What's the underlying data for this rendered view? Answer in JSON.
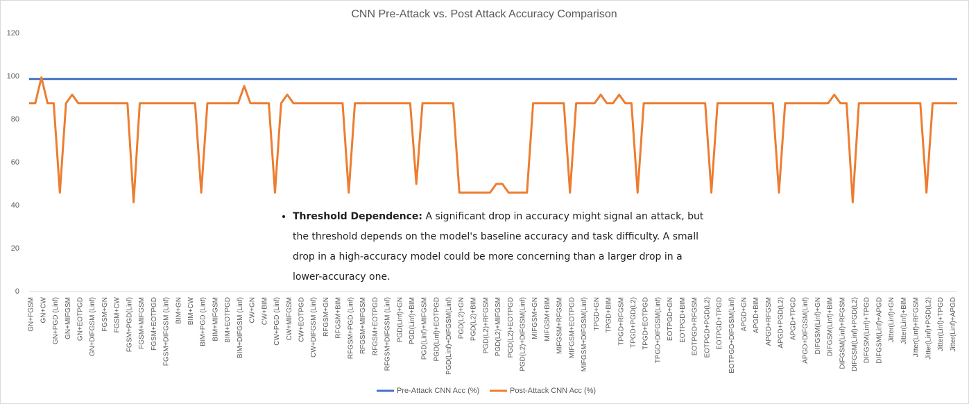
{
  "chart_data": {
    "type": "line",
    "title": "CNN Pre-Attack vs. Post Attack Accuracy Comparison",
    "categories": [
      "GN+FGSM",
      null,
      "GN+CW",
      null,
      "GN+PGD (Linf)",
      null,
      "GN+MIFGSM",
      null,
      "GN+EOTPGD",
      null,
      "GN+DIFGSM (Linf)",
      null,
      "FGSM+GN",
      null,
      "FGSM+CW",
      null,
      "FGSM+PGD(Linf)",
      null,
      "FGSM+MIFGSM",
      null,
      "FGSM+EOTPGD",
      null,
      "FGSM+DIFGSM (Linf)",
      null,
      "BIM+GN",
      null,
      "BIM+CW",
      null,
      "BIM+PGD (Linf)",
      null,
      "BIM+MIFGSM",
      null,
      "BIM+EOTPGD",
      null,
      "BIM+DIFGSM (Linf)",
      null,
      "CW+GN",
      null,
      "CW+BIM",
      null,
      "CW+PGD (Linf)",
      null,
      "CW+MIFGSM",
      null,
      "CW+EOTPGD",
      null,
      "CW+DIFGSM (Linf)",
      null,
      "RFGSM+GN",
      null,
      "RFGSM+BIM",
      null,
      "RFGSM+PGD (Linf)",
      null,
      "RFGSM+MIFGSM",
      null,
      "RFGSM+EOTPGD",
      null,
      "RFGSM+DIFGSM (Linf)",
      null,
      "PGD(Linf)+GN",
      null,
      "PGD(Linf)+BIM",
      null,
      "PGD(Linf)+MIFGSM",
      null,
      "PGD(Linf)+EOTPGD",
      null,
      "PGD(Linf)+DIFGSM(Linf)",
      null,
      "PGD(L2)+GN",
      null,
      "PGD(L2)+BIM",
      null,
      "PGD(L2)+RFGSM",
      null,
      "PGD(L2)+MIFGSM",
      null,
      "PGD(L2)+EOTPGD",
      null,
      "PGD(L2)+DIFGSM(Linf)",
      null,
      "MIFGSM+GN",
      null,
      "MIFGSM+BIM",
      null,
      "MIFGSM+RFGSM",
      null,
      "MIFGSM+EOTPGD",
      null,
      "MIFGSM+DIFGSM(Linf)",
      null,
      "TPGD+GN",
      null,
      "TPGD+BIM",
      null,
      "TPGD+RFGSM",
      null,
      "TPGD+PGD(L2)",
      null,
      "TPGD+EOTPGD",
      null,
      "TPGD+DIFGSM(Linf)",
      null,
      "EOTPGD+GN",
      null,
      "EOTPGD+BIM",
      null,
      "EOTPGD+RFGSM",
      null,
      "EOTPGD+PGD(L2)",
      null,
      "EOTPGD+TPGD",
      null,
      "EOTPGD+DIFGSM(Linf)",
      null,
      "APGD+GN",
      null,
      "APGD+BIM",
      null,
      "APGD+RFGSM",
      null,
      "APGD+PGD(L2)",
      null,
      "APGD+TPGD",
      null,
      "APGD+DIFGSM(Linf)",
      null,
      "DIFGSM(Linf)+GN",
      null,
      "DIFGSM(Linf)+BIM",
      null,
      "DIFGSM(Linf)+RFGSM",
      null,
      "DIFGSM(Linf)+PGD(L2)",
      null,
      "DIFGSM(Linf)+TPGD",
      null,
      "DIFGSM(Linf)+APGD",
      null,
      "Jitter(Linf)+GN",
      null,
      "Jitter(Linf)+BIM",
      null,
      "Jitter(Linf)+RFGSM",
      null,
      "Jitter(Linf)+PGD(L2)",
      null,
      "Jitter(Linf)+TPGD",
      null,
      "Jitter(Linf)+APGD",
      null
    ],
    "series": [
      {
        "name": "Pre-Attack CNN Acc (%)",
        "color": "#4472c4",
        "values": [
          98.8,
          98.8,
          98.8,
          98.8,
          98.8,
          98.8,
          98.8,
          98.8,
          98.8,
          98.8,
          98.8,
          98.8,
          98.8,
          98.8,
          98.8,
          98.8,
          98.8,
          98.8,
          98.8,
          98.8,
          98.8,
          98.8,
          98.8,
          98.8,
          98.8,
          98.8,
          98.8,
          98.8,
          98.8,
          98.8,
          98.8,
          98.8,
          98.8,
          98.8,
          98.8,
          98.8,
          98.8,
          98.8,
          98.8,
          98.8,
          98.8,
          98.8,
          98.8,
          98.8,
          98.8,
          98.8,
          98.8,
          98.8,
          98.8,
          98.8,
          98.8,
          98.8,
          98.8,
          98.8,
          98.8,
          98.8,
          98.8,
          98.8,
          98.8,
          98.8,
          98.8,
          98.8,
          98.8,
          98.8,
          98.8,
          98.8,
          98.8,
          98.8,
          98.8,
          98.8,
          98.8,
          98.8,
          98.8,
          98.8,
          98.8,
          98.8,
          98.8,
          98.8,
          98.8,
          98.8,
          98.8,
          98.8,
          98.8,
          98.8,
          98.8,
          98.8,
          98.8,
          98.8,
          98.8,
          98.8,
          98.8,
          98.8,
          98.8,
          98.8,
          98.8,
          98.8,
          98.8,
          98.8,
          98.8,
          98.8,
          98.8,
          98.8,
          98.8,
          98.8,
          98.8,
          98.8,
          98.8,
          98.8,
          98.8,
          98.8,
          98.8,
          98.8,
          98.8,
          98.8,
          98.8,
          98.8,
          98.8,
          98.8,
          98.8,
          98.8,
          98.8,
          98.8,
          98.8,
          98.8,
          98.8,
          98.8,
          98.8,
          98.8,
          98.8,
          98.8,
          98.8,
          98.8,
          98.8,
          98.8,
          98.8,
          98.8,
          98.8,
          98.8,
          98.8,
          98.8,
          98.8,
          98.8,
          98.8,
          98.8,
          98.8,
          98.8,
          98.8,
          98.8,
          98.8,
          98.8,
          98.8,
          98.8
        ]
      },
      {
        "name": "Post-Attack CNN Acc (%)",
        "color": "#ed7d31",
        "values": [
          87.5,
          87.5,
          99.5,
          87.5,
          87.5,
          46,
          87.5,
          91.5,
          87.5,
          87.5,
          87.5,
          87.5,
          87.5,
          87.5,
          87.5,
          87.5,
          87.5,
          41.5,
          87.5,
          87.5,
          87.5,
          87.5,
          87.5,
          87.5,
          87.5,
          87.5,
          87.5,
          87.5,
          46,
          87.5,
          87.5,
          87.5,
          87.5,
          87.5,
          87.5,
          95.5,
          87.5,
          87.5,
          87.5,
          87.5,
          46,
          87.5,
          91.5,
          87.5,
          87.5,
          87.5,
          87.5,
          87.5,
          87.5,
          87.5,
          87.5,
          87.5,
          46,
          87.5,
          87.5,
          87.5,
          87.5,
          87.5,
          87.5,
          87.5,
          87.5,
          87.5,
          87.5,
          50,
          87.5,
          87.5,
          87.5,
          87.5,
          87.5,
          87.5,
          46,
          46,
          46,
          46,
          46,
          46,
          50,
          50,
          46,
          46,
          46,
          46,
          87.5,
          87.5,
          87.5,
          87.5,
          87.5,
          87.5,
          46,
          87.5,
          87.5,
          87.5,
          87.5,
          91.5,
          87.5,
          87.5,
          91.5,
          87.5,
          87.5,
          46,
          87.5,
          87.5,
          87.5,
          87.5,
          87.5,
          87.5,
          87.5,
          87.5,
          87.5,
          87.5,
          87.5,
          46,
          87.5,
          87.5,
          87.5,
          87.5,
          87.5,
          87.5,
          87.5,
          87.5,
          87.5,
          87.5,
          46,
          87.5,
          87.5,
          87.5,
          87.5,
          87.5,
          87.5,
          87.5,
          87.5,
          91.5,
          87.5,
          87.5,
          41.5,
          87.5,
          87.5,
          87.5,
          87.5,
          87.5,
          87.5,
          87.5,
          87.5,
          87.5,
          87.5,
          87.5,
          46,
          87.5,
          87.5,
          87.5,
          87.5,
          87.5
        ]
      }
    ],
    "ylim": [
      0,
      120
    ],
    "yticks": [
      0,
      20,
      40,
      60,
      80,
      100,
      120
    ],
    "grid": false,
    "legend": "bottom",
    "annotation": {
      "heading": "Threshold Dependence:",
      "text": "A significant drop in accuracy might signal an attack, but the threshold depends on the model's baseline accuracy and task difficulty. A small drop in a high-accuracy model could be more concerning than a larger drop in a lower-accuracy one."
    }
  }
}
